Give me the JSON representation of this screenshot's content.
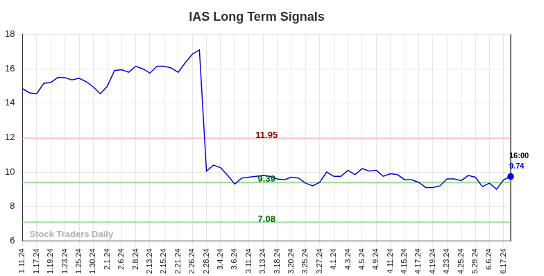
{
  "chart_data": {
    "type": "line",
    "title": "IAS Long Term Signals",
    "watermark": "Stock Traders Daily",
    "categories": [
      "1.11.24",
      null,
      "1.17.24",
      null,
      "1.19.24",
      null,
      "1.23.24",
      null,
      "1.25.24",
      null,
      "1.30.24",
      null,
      "2.1.24",
      null,
      "2.6.24",
      null,
      "2.8.24",
      null,
      "2.13.24",
      null,
      "2.15.24",
      null,
      "2.21.24",
      null,
      "2.26.24",
      null,
      "2.28.24",
      null,
      "3.4.24",
      null,
      "3.6.24",
      null,
      "3.11.24",
      null,
      "3.13.24",
      null,
      "3.18.24",
      null,
      "3.20.24",
      null,
      "3.25.24",
      null,
      "3.27.24",
      null,
      "4.1.24",
      null,
      "4.3.24",
      null,
      "4.5.24",
      null,
      "4.9.24",
      null,
      "4.11.24",
      null,
      "4.15.24",
      null,
      "4.17.24",
      null,
      "4.19.24",
      null,
      "4.23.24",
      null,
      "4.25.24",
      null,
      "5.29.24",
      null,
      "6.6.24",
      null,
      "6.17.24",
      null
    ],
    "values": [
      14.85,
      14.6,
      14.55,
      15.15,
      15.2,
      15.5,
      15.48,
      15.35,
      15.45,
      15.25,
      14.95,
      14.55,
      15.0,
      15.9,
      15.95,
      15.8,
      16.15,
      16.0,
      15.75,
      16.15,
      16.15,
      16.05,
      15.8,
      16.35,
      16.85,
      17.1,
      10.05,
      10.4,
      10.25,
      9.8,
      9.3,
      9.65,
      9.7,
      9.75,
      9.8,
      9.75,
      9.6,
      9.55,
      9.7,
      9.65,
      9.35,
      9.2,
      9.4,
      10.0,
      9.75,
      9.75,
      10.1,
      9.85,
      10.2,
      10.05,
      10.1,
      9.75,
      9.9,
      9.85,
      9.55,
      9.55,
      9.4,
      9.1,
      9.1,
      9.2,
      9.6,
      9.6,
      9.5,
      9.8,
      9.7,
      9.15,
      9.35,
      9.0,
      9.55,
      9.74
    ],
    "color": "#0000dd",
    "ylim": [
      6,
      18
    ],
    "yticks": [
      6,
      8,
      10,
      12,
      14,
      16,
      18
    ],
    "grid": true,
    "reference_lines": [
      {
        "value": 11.95,
        "color": "#ffc8c8",
        "label_color": "#8b0000"
      },
      {
        "value": 9.39,
        "color": "#99dd99",
        "label_color": "#006400"
      },
      {
        "value": 7.08,
        "color": "#99dd99",
        "label_color": "#006400"
      }
    ],
    "end_label": {
      "time": "16:00",
      "value": 9.74
    }
  }
}
